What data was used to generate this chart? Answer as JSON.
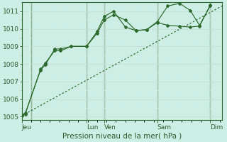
{
  "bg_color": "#cceee5",
  "grid_color": "#b8ddd6",
  "line_color": "#2d6a2d",
  "ylim": [
    1004.8,
    1011.5
  ],
  "yticks": [
    1005,
    1006,
    1007,
    1008,
    1009,
    1010,
    1011
  ],
  "xlabel": "Pression niveau de la mer( hPa )",
  "xlabel_fontsize": 7.5,
  "tick_fontsize": 6.5,
  "day_labels": [
    "Jeu",
    "Lun",
    "Ven",
    "Sam",
    "Dim"
  ],
  "day_positions": [
    0,
    55,
    70,
    115,
    160
  ],
  "xlim": [
    0,
    170
  ],
  "vline_positions": [
    8,
    55,
    70,
    115,
    160
  ],
  "trend_x": [
    0,
    170
  ],
  "trend_y": [
    1005.05,
    1011.3
  ],
  "line1_x": [
    0,
    3,
    16,
    20,
    28,
    33,
    42,
    55,
    64,
    70,
    78,
    88,
    97,
    106,
    115,
    124,
    134,
    143,
    151,
    160
  ],
  "line1_y": [
    1005.1,
    1005.2,
    1007.65,
    1007.95,
    1008.85,
    1008.85,
    1009.0,
    1009.0,
    1009.85,
    1010.7,
    1011.0,
    1010.1,
    1009.9,
    1009.95,
    1010.4,
    1011.3,
    1011.45,
    1011.05,
    1010.2,
    1011.3
  ],
  "line2_x": [
    0,
    3,
    16,
    20,
    28,
    33,
    42,
    55,
    64,
    70,
    78,
    88,
    97,
    106,
    115,
    124,
    134,
    143,
    151,
    160
  ],
  "line2_y": [
    1005.05,
    1005.15,
    1007.7,
    1008.05,
    1008.75,
    1008.75,
    1009.0,
    1009.0,
    1009.75,
    1010.5,
    1010.8,
    1010.5,
    1009.9,
    1009.95,
    1010.35,
    1010.2,
    1010.15,
    1010.1,
    1010.15,
    1011.35
  ],
  "figsize": [
    3.2,
    2.0
  ],
  "dpi": 100
}
